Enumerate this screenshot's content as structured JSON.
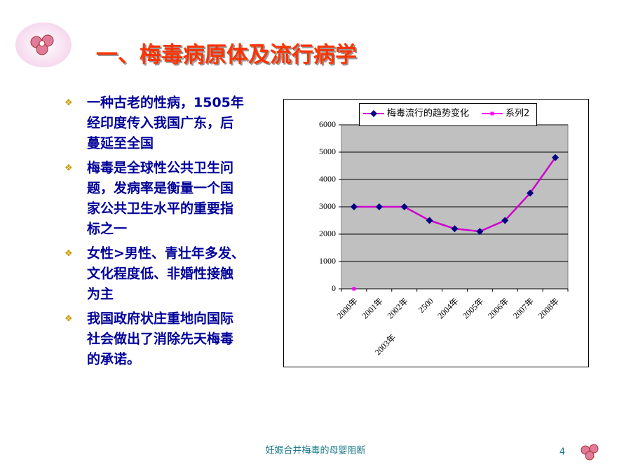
{
  "slide": {
    "title": "一、梅毒病原体及流行病学",
    "bullets": [
      [
        "一种古老的性病，1505年",
        "经印度传入我国广东，后",
        "蔓延至全国"
      ],
      [
        "梅毒是全球性公共卫生问",
        "题，发病率是衡量一个国",
        "家公共卫生水平的重要指",
        "标之一"
      ],
      [
        "女性>男性、青壮年多发、",
        "文化程度低、非婚性接触",
        "为主"
      ],
      [
        "我国政府状庄重地向国际",
        "社会做出了消除先天梅毒",
        "的承诺。"
      ]
    ],
    "footer": "妊娠合并梅毒的母婴阻断",
    "page_number": "4"
  },
  "chart_data": {
    "type": "line",
    "categories": [
      "2000年",
      "2001年",
      "2002年",
      "2500",
      "2004年",
      "2005年",
      "2006年",
      "2007年",
      "2008年"
    ],
    "x_sublabel": "2003年",
    "series": [
      {
        "name": "梅毒流行的趋势变化",
        "color": "#cc00cc",
        "marker_color": "#000080",
        "marker": "diamond",
        "values": [
          3000,
          3000,
          3000,
          2500,
          2200,
          2100,
          2500,
          3500,
          4800
        ]
      },
      {
        "name": "系列2",
        "color": "#ff00ff",
        "marker_color": "#ff00ff",
        "marker": "square",
        "values": [
          0,
          null,
          null,
          null,
          null,
          null,
          null,
          null,
          null
        ]
      }
    ],
    "ylim": [
      0,
      6000
    ],
    "yticks": [
      0,
      1000,
      2000,
      3000,
      4000,
      5000,
      6000
    ],
    "grid": true,
    "plot_background": "#c0c0c0",
    "legend": "top"
  }
}
